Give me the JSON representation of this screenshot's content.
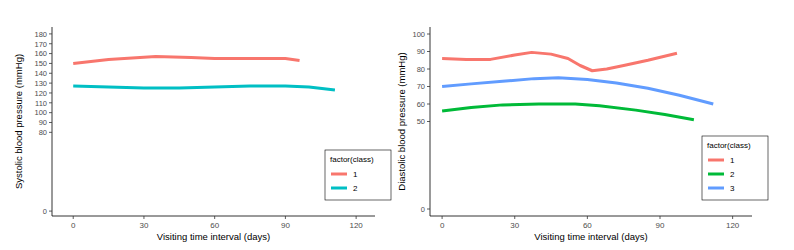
{
  "chart_data": [
    {
      "type": "line",
      "x_label": "Visiting time interval (days)",
      "y_label": "Systolic blood pressure (mmHg)",
      "xlim": [
        -9,
        128
      ],
      "ylim": [
        -5,
        187
      ],
      "xticks": [
        0,
        30,
        60,
        90,
        120
      ],
      "yticks": [
        0,
        80,
        90,
        100,
        110,
        120,
        130,
        140,
        150,
        160,
        170,
        180
      ],
      "grid": false,
      "legend": "right",
      "legend_title": "factor(class)",
      "series": [
        {
          "name": "1",
          "color": "#F8766D",
          "x": [
            0,
            15,
            35,
            50,
            60,
            75,
            90,
            96
          ],
          "values": [
            150,
            154,
            157,
            156,
            155,
            155,
            155,
            153
          ]
        },
        {
          "name": "2",
          "color": "#00BFC4",
          "x": [
            0,
            15,
            30,
            45,
            60,
            75,
            90,
            100,
            111
          ],
          "values": [
            127,
            126,
            125,
            125,
            126,
            127,
            127,
            126,
            123
          ]
        }
      ]
    },
    {
      "type": "line",
      "x_label": "Visiting time interval (days)",
      "y_label": "Diastolic blood pressure (mmHg)",
      "xlim": [
        -5,
        128
      ],
      "ylim": [
        -4,
        104
      ],
      "xticks": [
        0,
        30,
        60,
        90,
        120
      ],
      "yticks": [
        0,
        50,
        60,
        70,
        80,
        90,
        100
      ],
      "grid": false,
      "legend": "right",
      "legend_title": "factor(class)",
      "series": [
        {
          "name": "1",
          "color": "#F8766D",
          "x": [
            0,
            10,
            20,
            30,
            37,
            45,
            52,
            57,
            62,
            68,
            75,
            85,
            97
          ],
          "values": [
            86,
            85.5,
            85.5,
            88,
            89.5,
            88.5,
            86,
            82,
            79,
            80,
            82,
            85,
            89
          ]
        },
        {
          "name": "2",
          "color": "#00BA38",
          "x": [
            0,
            12,
            25,
            40,
            55,
            65,
            80,
            92,
            104
          ],
          "values": [
            56,
            58,
            59.5,
            60,
            60,
            59,
            56.5,
            54,
            51
          ]
        },
        {
          "name": "3",
          "color": "#619CFF",
          "x": [
            0,
            12,
            25,
            38,
            48,
            60,
            72,
            85,
            98,
            112
          ],
          "values": [
            70,
            71.5,
            73,
            74.5,
            75,
            74,
            72,
            69,
            65,
            60
          ]
        }
      ]
    }
  ]
}
